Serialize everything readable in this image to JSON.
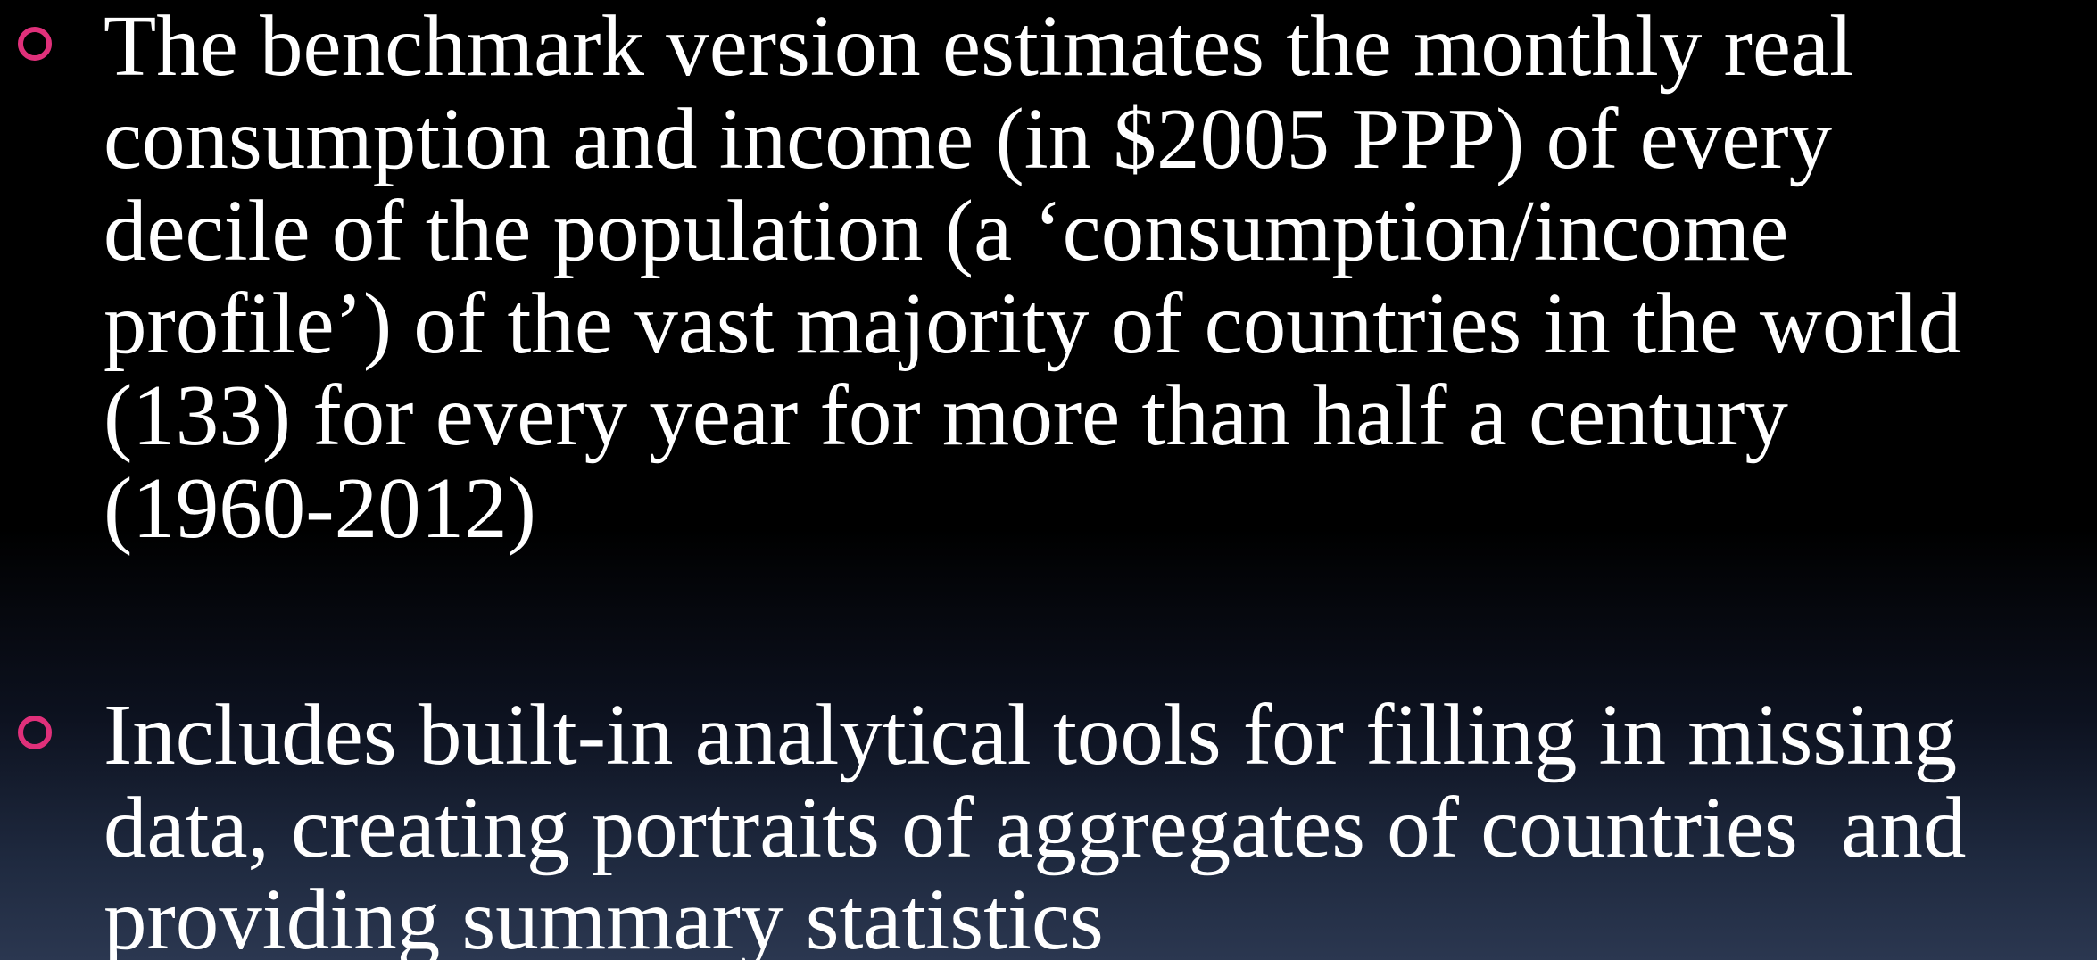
{
  "bullets": [
    {
      "lines": [
        "The benchmark version estimates the monthly real",
        "consumption and income (in $2005 PPP) of every",
        "decile of the population (a ‘consumption/income",
        "profile’) of the vast majority of countries in the world",
        "(133) for every year for more than half a century",
        "(1960-2012)"
      ]
    },
    {
      "lines": [
        "Includes built-in analytical tools for filling in missing",
        "data, creating portraits of aggregates of countries  and",
        "providing summary statistics"
      ]
    }
  ]
}
